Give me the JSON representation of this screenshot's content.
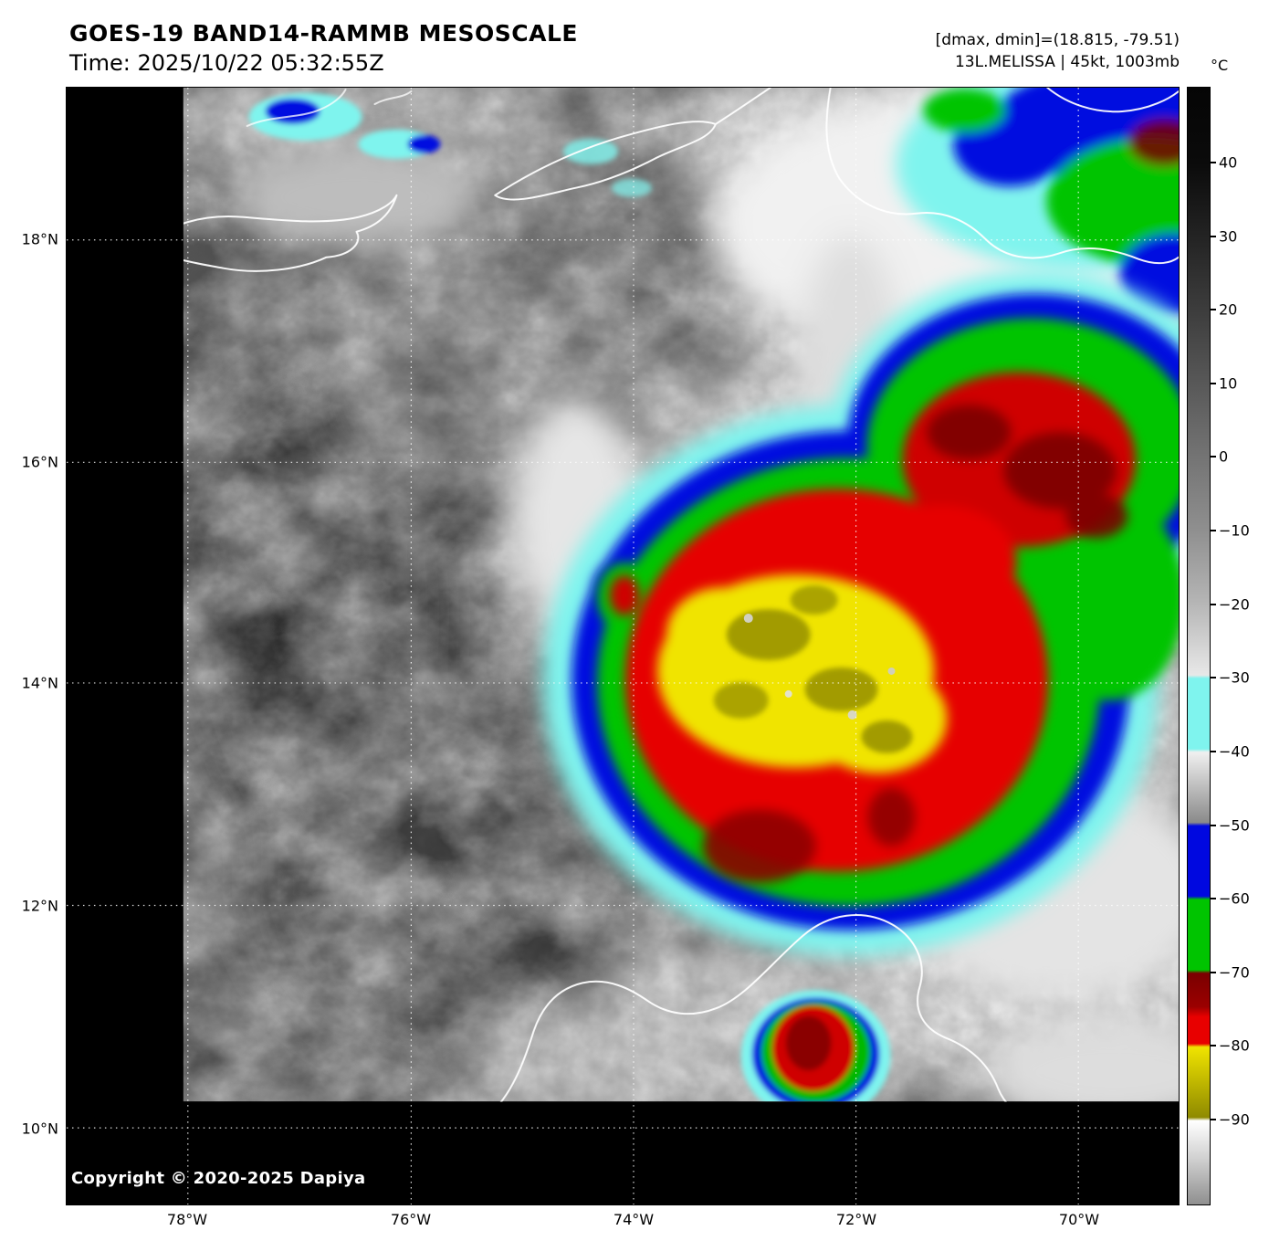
{
  "header": {
    "title": "GOES-19 BAND14-RAMMB MESOSCALE",
    "time": "Time: 2025/10/22 05:32:55Z",
    "range_info": "[dmax, dmin]=(18.815, -79.51)",
    "storm_info": "13L.MELISSA | 45kt, 1003mb"
  },
  "colorbar": {
    "unit_label": "°C",
    "tick_labels": [
      "40",
      "30",
      "20",
      "10",
      "0",
      "−10",
      "−20",
      "−30",
      "−40",
      "−50",
      "−60",
      "−70",
      "−80",
      "−90"
    ]
  },
  "axes": {
    "lat_labels": [
      "18°N",
      "16°N",
      "14°N",
      "12°N",
      "10°N"
    ],
    "lon_labels": [
      "78°W",
      "76°W",
      "74°W",
      "72°W",
      "70°W"
    ]
  },
  "map": {
    "copyright": "Copyright © 2020-2025 Dapiya"
  },
  "colors": {
    "cyan": "#7ff4ee",
    "blue": "#0008e0",
    "green": "#00c400",
    "red": "#e60000",
    "dark_red": "#7a0000",
    "yellow": "#f0e400",
    "olive": "#8f8a00",
    "coastline": "#ffffff",
    "background": "#ffffff",
    "space": "#000000"
  }
}
